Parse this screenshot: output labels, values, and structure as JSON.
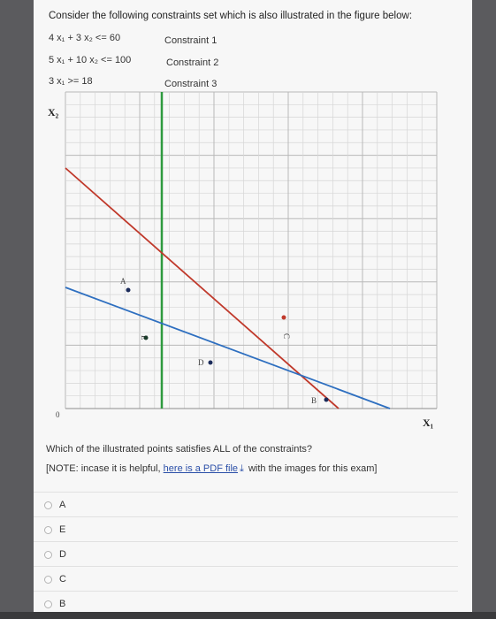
{
  "question": "Consider the following constraints set which is also illustrated in the figure below:",
  "constraints": [
    {
      "expr": "4 x₁ + 3 x₂ <= 60",
      "name": "Constraint 1"
    },
    {
      "expr": "5 x₁ + 10 x₂ <= 100",
      "name": "Constraint 2"
    },
    {
      "expr": "3 x₁ >= 18",
      "name": "Constraint 3"
    }
  ],
  "figure": {
    "y_axis_label": "X₂",
    "x_axis_label": "X₁",
    "origin_label": "0",
    "line_colors": {
      "constraint1": "#c0392b",
      "constraint2": "#2e6fc0",
      "constraint3": "#2e9a3e"
    },
    "points": [
      {
        "label": "A",
        "dot_color": "#1b2b5a"
      },
      {
        "label": "E",
        "dot_color": "#1b3b2a"
      },
      {
        "label": "C",
        "dot_color": "#c0392b"
      },
      {
        "label": "D",
        "dot_color": "#1b2b5a"
      },
      {
        "label": "B",
        "dot_color": "#1b2b5a"
      }
    ]
  },
  "sub_question": "Which of the illustrated points satisfies ALL of the constraints?",
  "note": {
    "prefix": "[NOTE: incase it is helpful, ",
    "link_text": "here is a PDF file",
    "suffix": " with the images for this exam]"
  },
  "options": [
    "A",
    "E",
    "D",
    "C",
    "B"
  ]
}
